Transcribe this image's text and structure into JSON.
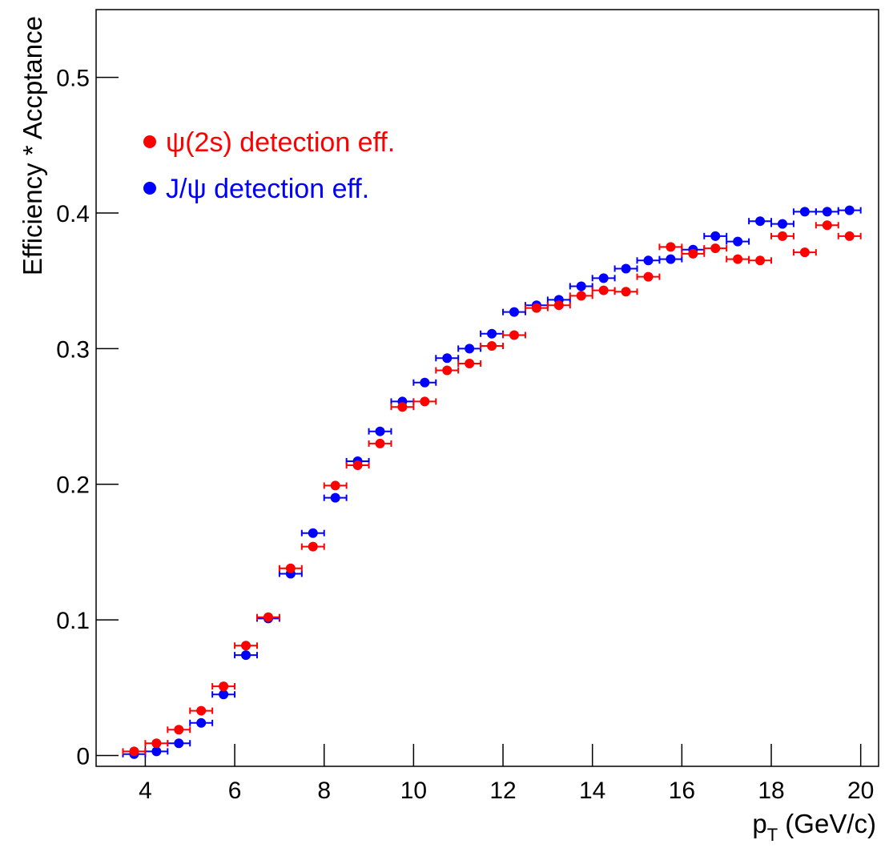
{
  "chart_data": {
    "type": "errorbar",
    "xlabel": [
      "p",
      "T",
      " (GeV/c)"
    ],
    "ylabel": "Efficiency * Accptance",
    "x": [
      3.75,
      4.25,
      4.75,
      5.25,
      5.75,
      6.25,
      6.75,
      7.25,
      7.75,
      8.25,
      8.75,
      9.25,
      9.75,
      10.25,
      10.75,
      11.25,
      11.75,
      12.25,
      12.75,
      13.25,
      13.75,
      14.25,
      14.75,
      15.25,
      15.75,
      16.25,
      16.75,
      17.25,
      17.75,
      18.25,
      18.75,
      19.25,
      19.75
    ],
    "xerr": 0.25,
    "series": [
      {
        "name": "ψ(2s) detection eff.",
        "color": "#ff0000",
        "values": [
          0.003,
          0.009,
          0.019,
          0.033,
          0.051,
          0.081,
          0.102,
          0.138,
          0.154,
          0.199,
          0.214,
          0.23,
          0.257,
          0.261,
          0.284,
          0.289,
          0.302,
          0.31,
          0.33,
          0.332,
          0.339,
          0.343,
          0.342,
          0.353,
          0.375,
          0.37,
          0.374,
          0.366,
          0.365,
          0.383,
          0.371,
          0.391,
          0.383
        ]
      },
      {
        "name": "J/ψ detection eff.",
        "color": "#0000ff",
        "values": [
          0.001,
          0.003,
          0.009,
          0.024,
          0.045,
          0.074,
          0.101,
          0.134,
          0.164,
          0.19,
          0.217,
          0.239,
          0.261,
          0.275,
          0.293,
          0.3,
          0.311,
          0.327,
          0.332,
          0.336,
          0.346,
          0.352,
          0.359,
          0.365,
          0.366,
          0.373,
          0.383,
          0.379,
          0.394,
          0.392,
          0.401,
          0.401,
          0.402
        ]
      }
    ],
    "xlim": [
      2.9,
      20.4
    ],
    "ylim": [
      -0.008,
      0.55
    ],
    "xticks": [
      4,
      6,
      8,
      10,
      12,
      14,
      16,
      18,
      20
    ],
    "yticks": [
      0,
      0.1,
      0.2,
      0.3,
      0.4,
      0.5
    ],
    "legend": "upper left",
    "grid": false
  }
}
